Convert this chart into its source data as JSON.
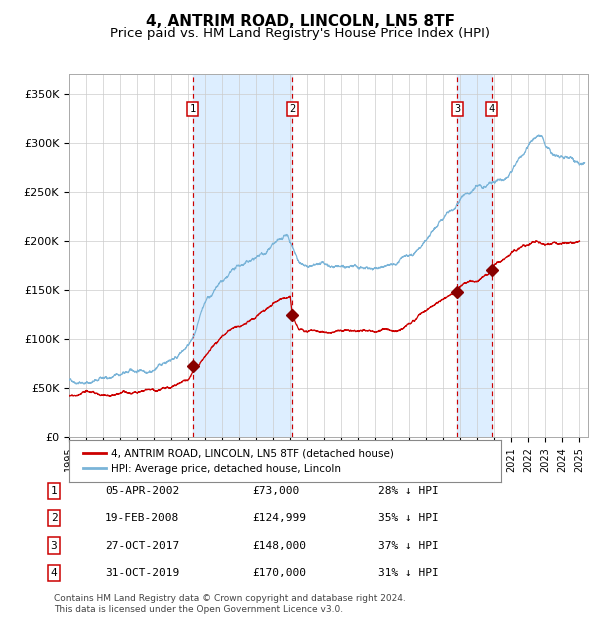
{
  "title": "4, ANTRIM ROAD, LINCOLN, LN5 8TF",
  "subtitle": "Price paid vs. HM Land Registry's House Price Index (HPI)",
  "ylim": [
    0,
    370000
  ],
  "xlim_start": 1995.0,
  "xlim_end": 2025.5,
  "yticks": [
    0,
    50000,
    100000,
    150000,
    200000,
    250000,
    300000,
    350000
  ],
  "ytick_labels": [
    "£0",
    "£50K",
    "£100K",
    "£150K",
    "£200K",
    "£250K",
    "£300K",
    "£350K"
  ],
  "xticks": [
    1995,
    1996,
    1997,
    1998,
    1999,
    2000,
    2001,
    2002,
    2003,
    2004,
    2005,
    2006,
    2007,
    2008,
    2009,
    2010,
    2011,
    2012,
    2013,
    2014,
    2015,
    2016,
    2017,
    2018,
    2019,
    2020,
    2021,
    2022,
    2023,
    2024,
    2025
  ],
  "hpi_color": "#7ab4d8",
  "price_color": "#cc0000",
  "marker_color": "#880000",
  "vline_color": "#cc0000",
  "shade_color": "#ddeeff",
  "title_fontsize": 11,
  "subtitle_fontsize": 9.5,
  "purchases": [
    {
      "num": 1,
      "year": 2002.27,
      "price": 73000,
      "pct": "28% ↓ HPI",
      "date": "05-APR-2002"
    },
    {
      "num": 2,
      "year": 2008.12,
      "price": 124999,
      "pct": "35% ↓ HPI",
      "date": "19-FEB-2008"
    },
    {
      "num": 3,
      "year": 2017.82,
      "price": 148000,
      "pct": "37% ↓ HPI",
      "date": "27-OCT-2017"
    },
    {
      "num": 4,
      "year": 2019.83,
      "price": 170000,
      "pct": "31% ↓ HPI",
      "date": "31-OCT-2019"
    }
  ],
  "legend_line1": "4, ANTRIM ROAD, LINCOLN, LN5 8TF (detached house)",
  "legend_line2": "HPI: Average price, detached house, Lincoln",
  "footer1": "Contains HM Land Registry data © Crown copyright and database right 2024.",
  "footer2": "This data is licensed under the Open Government Licence v3.0.",
  "background_color": "#ffffff",
  "grid_color": "#cccccc"
}
